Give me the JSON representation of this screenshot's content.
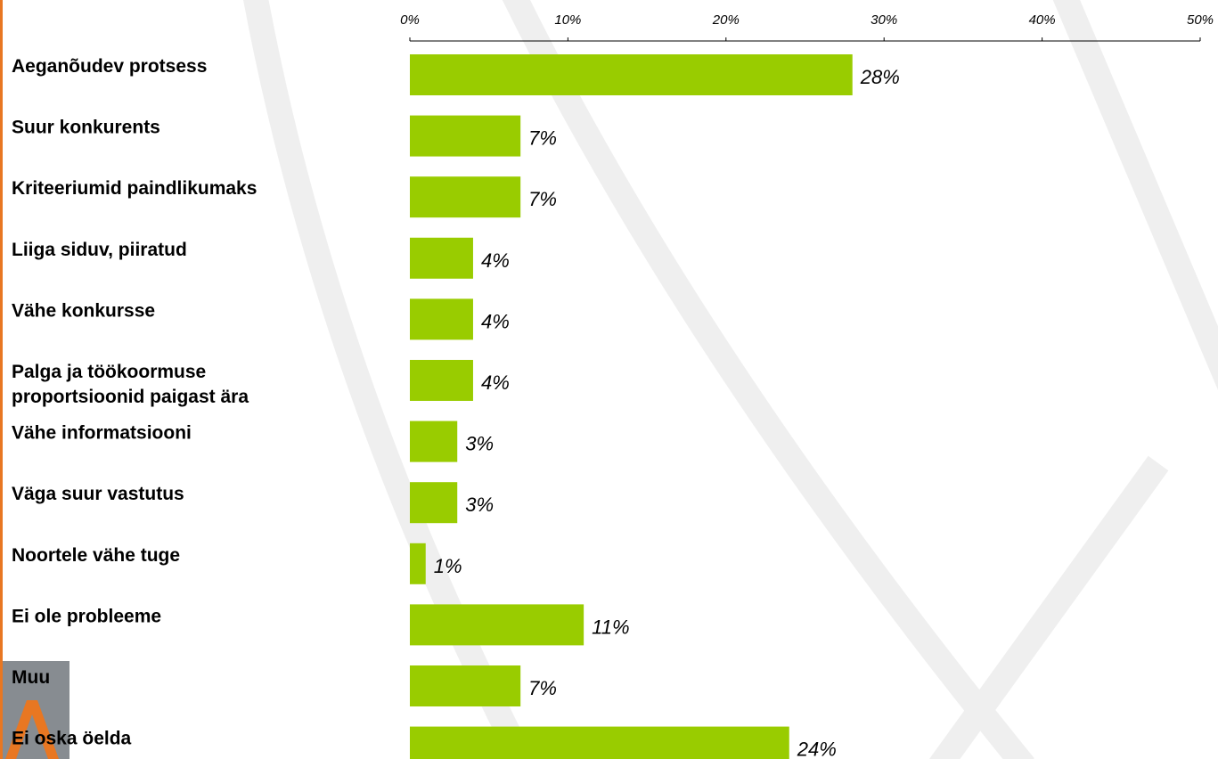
{
  "colors": {
    "bar": "#99CC00",
    "orange_accent": "#E87722",
    "gray_block": "#878C91",
    "text": "#000000",
    "axis": "#000000"
  },
  "chart_data": {
    "type": "bar",
    "orientation": "horizontal",
    "title": "",
    "xlabel": "",
    "ylabel": "",
    "xlim": [
      0,
      50
    ],
    "ticks": [
      0,
      10,
      20,
      30,
      40,
      50
    ],
    "tick_labels": [
      "0%",
      "10%",
      "20%",
      "30%",
      "40%",
      "50%"
    ],
    "grid": false,
    "legend": "none",
    "categories": [
      [
        "Aeganõudev protsess"
      ],
      [
        "Suur konkurents"
      ],
      [
        "Kriteeriumid paindlikumaks"
      ],
      [
        "Liiga siduv, piiratud"
      ],
      [
        "Vähe konkursse"
      ],
      [
        "Palga ja töökoormuse",
        "proportsioonid paigast ära"
      ],
      [
        "Vähe informatsiooni"
      ],
      [
        "Väga suur vastutus"
      ],
      [
        "Noortele vähe tuge"
      ],
      [
        "Ei ole probleeme"
      ],
      [
        "Muu"
      ],
      [
        "Ei oska öelda"
      ]
    ],
    "values": [
      28,
      7,
      7,
      4,
      4,
      4,
      3,
      3,
      1,
      11,
      7,
      24
    ],
    "value_labels": [
      "28%",
      "7%",
      "7%",
      "4%",
      "4%",
      "4%",
      "3%",
      "3%",
      "1%",
      "11%",
      "7%",
      "24%"
    ]
  }
}
